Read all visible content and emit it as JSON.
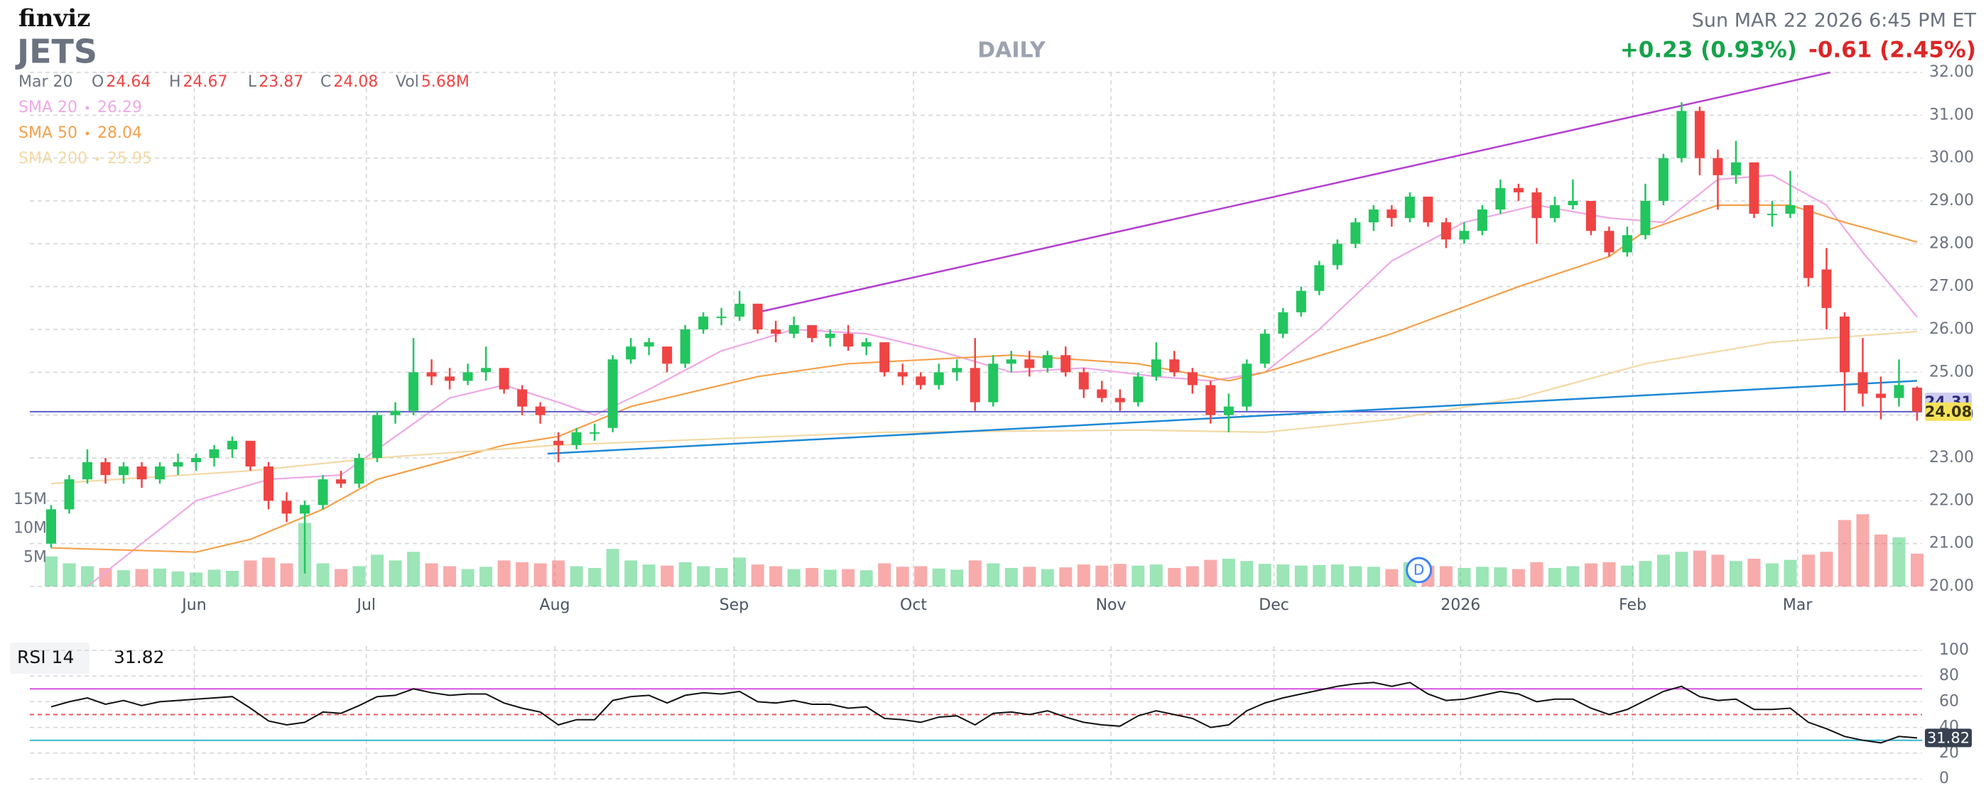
{
  "header": {
    "logo": "finviz",
    "ticker": "JETS",
    "timeframe": "DAILY",
    "datetime": "Sun MAR 22 2026 6:45 PM ET",
    "change_after": "+0.23 (0.93%)",
    "change_day": "-0.61 (2.45%)"
  },
  "chart_data": {
    "type": "candlestick",
    "up_color": "#22c55e",
    "down_color": "#ef4444",
    "ohlc_legend": {
      "date": "Mar 20",
      "items": [
        {
          "label": "O",
          "value": 24.64
        },
        {
          "label": "H",
          "value": 24.67
        },
        {
          "label": "L",
          "value": 23.87
        },
        {
          "label": "C",
          "value": 24.08
        },
        {
          "label": "Vol",
          "value": 5.68,
          "value_label": "5.68M"
        }
      ]
    },
    "ylim": [
      20,
      32
    ],
    "yticks": [
      {
        "value": 20,
        "label": "20.00"
      },
      {
        "value": 21,
        "label": "21.00"
      },
      {
        "value": 22,
        "label": "22.00"
      },
      {
        "value": 23,
        "label": "23.00"
      },
      {
        "value": 24,
        "label": "24.00"
      },
      {
        "value": 25,
        "label": "25.00"
      },
      {
        "value": 26,
        "label": "26.00"
      },
      {
        "value": 27,
        "label": "27.00"
      },
      {
        "value": 28,
        "label": "28.00"
      },
      {
        "value": 29,
        "label": "29.00"
      },
      {
        "value": 30,
        "label": "30.00"
      },
      {
        "value": 31,
        "label": "31.00"
      },
      {
        "value": 32,
        "label": "32.00"
      }
    ],
    "xticks": [
      {
        "value": 7.9,
        "label": "Jun"
      },
      {
        "value": 17.4,
        "label": "Jul"
      },
      {
        "value": 27.8,
        "label": "Aug"
      },
      {
        "value": 37.7,
        "label": "Sep"
      },
      {
        "value": 47.6,
        "label": "Oct"
      },
      {
        "value": 58.5,
        "label": "Nov"
      },
      {
        "value": 67.5,
        "label": "Dec"
      },
      {
        "value": 77.8,
        "label": "2026"
      },
      {
        "value": 87.3,
        "label": "Feb"
      },
      {
        "value": 96.4,
        "label": "Mar"
      }
    ],
    "grid": true,
    "candles": [
      [
        21.0,
        21.9,
        20.9,
        21.8
      ],
      [
        21.8,
        22.6,
        21.7,
        22.5
      ],
      [
        22.5,
        23.2,
        22.4,
        22.9
      ],
      [
        22.9,
        23.0,
        22.4,
        22.6
      ],
      [
        22.6,
        22.9,
        22.4,
        22.8
      ],
      [
        22.8,
        22.9,
        22.3,
        22.5
      ],
      [
        22.5,
        22.9,
        22.4,
        22.8
      ],
      [
        22.8,
        23.1,
        22.6,
        22.9
      ],
      [
        22.9,
        23.1,
        22.7,
        23.0
      ],
      [
        23.0,
        23.3,
        22.8,
        23.2
      ],
      [
        23.2,
        23.5,
        23.0,
        23.4
      ],
      [
        23.4,
        23.4,
        22.7,
        22.8
      ],
      [
        22.8,
        22.9,
        21.8,
        22.0
      ],
      [
        22.0,
        22.2,
        21.5,
        21.7
      ],
      [
        21.7,
        22.0,
        20.3,
        21.9
      ],
      [
        21.9,
        22.6,
        21.8,
        22.5
      ],
      [
        22.5,
        22.7,
        22.3,
        22.4
      ],
      [
        22.4,
        23.1,
        22.3,
        23.0
      ],
      [
        23.0,
        24.1,
        22.9,
        24.0
      ],
      [
        24.0,
        24.3,
        23.8,
        24.1
      ],
      [
        24.1,
        25.8,
        24.0,
        25.0
      ],
      [
        25.0,
        25.3,
        24.7,
        24.9
      ],
      [
        24.9,
        25.1,
        24.6,
        24.8
      ],
      [
        24.8,
        25.2,
        24.7,
        25.0
      ],
      [
        25.0,
        25.6,
        24.8,
        25.1
      ],
      [
        25.1,
        25.1,
        24.5,
        24.6
      ],
      [
        24.6,
        24.7,
        24.0,
        24.2
      ],
      [
        24.2,
        24.3,
        23.8,
        24.0
      ],
      [
        23.4,
        23.6,
        22.9,
        23.3
      ],
      [
        23.3,
        23.7,
        23.2,
        23.6
      ],
      [
        23.6,
        23.8,
        23.4,
        23.6
      ],
      [
        23.7,
        25.4,
        23.6,
        25.3
      ],
      [
        25.3,
        25.8,
        25.2,
        25.6
      ],
      [
        25.6,
        25.8,
        25.4,
        25.7
      ],
      [
        25.6,
        25.6,
        25.0,
        25.2
      ],
      [
        25.2,
        26.1,
        25.1,
        26.0
      ],
      [
        26.0,
        26.4,
        25.9,
        26.3
      ],
      [
        26.3,
        26.5,
        26.1,
        26.3
      ],
      [
        26.3,
        26.9,
        26.2,
        26.6
      ],
      [
        26.6,
        26.6,
        25.9,
        26.0
      ],
      [
        26.0,
        26.2,
        25.7,
        25.9
      ],
      [
        25.9,
        26.3,
        25.8,
        26.1
      ],
      [
        26.1,
        26.1,
        25.7,
        25.8
      ],
      [
        25.8,
        26.0,
        25.6,
        25.9
      ],
      [
        25.9,
        26.1,
        25.5,
        25.6
      ],
      [
        25.6,
        25.8,
        25.4,
        25.7
      ],
      [
        25.7,
        25.7,
        24.9,
        25.0
      ],
      [
        25.0,
        25.2,
        24.7,
        24.9
      ],
      [
        24.9,
        25.0,
        24.6,
        24.7
      ],
      [
        24.7,
        25.2,
        24.6,
        25.0
      ],
      [
        25.0,
        25.3,
        24.8,
        25.1
      ],
      [
        25.1,
        25.8,
        24.1,
        24.3
      ],
      [
        24.3,
        25.4,
        24.2,
        25.2
      ],
      [
        25.2,
        25.5,
        25.0,
        25.3
      ],
      [
        25.3,
        25.5,
        24.9,
        25.1
      ],
      [
        25.1,
        25.5,
        25.0,
        25.4
      ],
      [
        25.4,
        25.6,
        24.9,
        25.0
      ],
      [
        25.0,
        25.1,
        24.4,
        24.6
      ],
      [
        24.6,
        24.8,
        24.3,
        24.4
      ],
      [
        24.4,
        24.6,
        24.1,
        24.3
      ],
      [
        24.3,
        25.0,
        24.2,
        24.9
      ],
      [
        24.9,
        25.7,
        24.8,
        25.3
      ],
      [
        25.3,
        25.5,
        24.9,
        25.0
      ],
      [
        25.0,
        25.1,
        24.5,
        24.7
      ],
      [
        24.7,
        24.8,
        23.8,
        24.0
      ],
      [
        24.0,
        24.5,
        23.6,
        24.2
      ],
      [
        24.2,
        25.3,
        24.1,
        25.2
      ],
      [
        25.2,
        26.0,
        25.1,
        25.9
      ],
      [
        25.9,
        26.5,
        25.8,
        26.4
      ],
      [
        26.4,
        27.0,
        26.3,
        26.9
      ],
      [
        26.9,
        27.6,
        26.8,
        27.5
      ],
      [
        27.5,
        28.1,
        27.4,
        28.0
      ],
      [
        28.0,
        28.6,
        27.9,
        28.5
      ],
      [
        28.5,
        28.9,
        28.3,
        28.8
      ],
      [
        28.8,
        28.9,
        28.4,
        28.6
      ],
      [
        28.6,
        29.2,
        28.5,
        29.1
      ],
      [
        29.1,
        29.1,
        28.4,
        28.5
      ],
      [
        28.5,
        28.6,
        27.9,
        28.1
      ],
      [
        28.1,
        28.5,
        28.0,
        28.3
      ],
      [
        28.3,
        28.9,
        28.2,
        28.8
      ],
      [
        28.8,
        29.5,
        28.7,
        29.3
      ],
      [
        29.3,
        29.4,
        29.0,
        29.2
      ],
      [
        29.2,
        29.3,
        28.0,
        28.6
      ],
      [
        28.6,
        29.1,
        28.5,
        28.9
      ],
      [
        28.9,
        29.5,
        28.8,
        29.0
      ],
      [
        29.0,
        29.0,
        28.2,
        28.3
      ],
      [
        28.3,
        28.4,
        27.7,
        27.8
      ],
      [
        27.8,
        28.4,
        27.7,
        28.2
      ],
      [
        28.2,
        29.4,
        28.1,
        29.0
      ],
      [
        29.0,
        30.1,
        28.9,
        30.0
      ],
      [
        30.0,
        31.3,
        29.9,
        31.1
      ],
      [
        31.1,
        31.2,
        29.6,
        30.0
      ],
      [
        30.0,
        30.2,
        28.8,
        29.6
      ],
      [
        29.6,
        30.4,
        29.4,
        29.9
      ],
      [
        29.9,
        29.9,
        28.6,
        28.7
      ],
      [
        28.7,
        29.0,
        28.4,
        28.7
      ],
      [
        28.7,
        29.7,
        28.6,
        28.9
      ],
      [
        28.9,
        28.9,
        27.0,
        27.2
      ],
      [
        27.4,
        27.9,
        26.0,
        26.5
      ],
      [
        26.3,
        26.4,
        24.1,
        25.0
      ],
      [
        25.0,
        25.8,
        24.2,
        24.5
      ],
      [
        24.5,
        24.9,
        23.9,
        24.4
      ],
      [
        24.4,
        25.3,
        24.2,
        24.7
      ],
      [
        24.64,
        24.67,
        23.87,
        24.08
      ]
    ],
    "sma": [
      {
        "name": "SMA 20",
        "current": 26.29,
        "color": "#eea8e6",
        "x": [
          2,
          8,
          12,
          16,
          19,
          22,
          25,
          28,
          30,
          33,
          37,
          41,
          45,
          49,
          53,
          57,
          61,
          64,
          67,
          70,
          74,
          78,
          82,
          86,
          89,
          92,
          95,
          98,
          100,
          102,
          103
        ],
        "values": [
          20.0,
          22.0,
          22.5,
          22.6,
          23.5,
          24.4,
          24.7,
          24.3,
          24.0,
          24.6,
          25.5,
          26.0,
          25.9,
          25.5,
          25.0,
          25.1,
          24.9,
          24.8,
          25.0,
          26.0,
          27.6,
          28.5,
          28.9,
          28.6,
          28.5,
          29.5,
          29.6,
          28.9,
          27.8,
          26.8,
          26.29
        ]
      },
      {
        "name": "SMA 50",
        "current": 28.04,
        "color": "#f5a04a",
        "x": [
          0,
          8,
          11,
          15,
          18,
          25,
          28,
          32,
          39,
          44,
          53,
          60,
          65,
          67,
          74,
          81,
          86,
          88,
          92,
          96,
          99,
          103
        ],
        "values": [
          20.9,
          20.8,
          21.1,
          21.8,
          22.5,
          23.3,
          23.5,
          24.2,
          24.9,
          25.2,
          25.4,
          25.2,
          24.8,
          25.0,
          25.9,
          27.0,
          27.7,
          28.3,
          28.9,
          28.9,
          28.5,
          28.04
        ]
      },
      {
        "name": "SMA 200",
        "current": 25.95,
        "color": "#f3d9a6",
        "x": [
          0,
          11,
          18,
          28,
          46,
          60,
          67,
          74,
          81,
          88,
          95,
          103
        ],
        "values": [
          22.4,
          22.7,
          23.0,
          23.3,
          23.6,
          23.65,
          23.6,
          23.9,
          24.4,
          25.2,
          25.7,
          25.95
        ]
      }
    ],
    "trendlines": [
      {
        "color": "#b43fd0",
        "x": [
          39,
          98.2
        ],
        "values": [
          26.4,
          32.0
        ]
      },
      {
        "color": "#1e88d6",
        "x": [
          27.4,
          103
        ],
        "values": [
          23.1,
          24.8
        ]
      }
    ],
    "horizontal_lines": [
      {
        "value": 24.08,
        "color": "#5c5cc8"
      }
    ],
    "price_labels": [
      {
        "value": 24.31,
        "bg": "#cfcdf3",
        "color": "#2b2b7a"
      },
      {
        "value": 24.08,
        "bg": "#f4e25c",
        "color": "#3a3200"
      }
    ],
    "markers": [
      {
        "x": 75.5,
        "label": "D",
        "color": "#3b82f6"
      }
    ],
    "volume": {
      "ylim": [
        0,
        15
      ],
      "yticks": [
        {
          "value": 5,
          "label": "5M"
        },
        {
          "value": 10,
          "label": "10M"
        },
        {
          "value": 15,
          "label": "15M"
        }
      ],
      "values": [
        5.2,
        4.0,
        3.5,
        3.2,
        2.8,
        3.0,
        3.1,
        2.6,
        2.4,
        2.9,
        2.7,
        4.5,
        5.0,
        4.0,
        11.0,
        4.0,
        3.0,
        3.5,
        5.5,
        4.5,
        6.0,
        4.0,
        3.5,
        3.0,
        3.4,
        4.5,
        4.2,
        4.0,
        4.5,
        3.5,
        3.2,
        6.5,
        4.5,
        3.8,
        3.6,
        4.2,
        3.5,
        3.2,
        5.0,
        3.8,
        3.5,
        3.0,
        3.2,
        2.9,
        3.0,
        2.8,
        4.0,
        3.4,
        3.5,
        3.1,
        2.9,
        4.5,
        4.0,
        3.2,
        3.4,
        3.0,
        3.3,
        3.8,
        3.6,
        3.9,
        3.6,
        3.8,
        3.2,
        3.5,
        4.6,
        4.8,
        4.4,
        3.9,
        3.8,
        3.6,
        3.7,
        3.8,
        3.5,
        3.4,
        3.0,
        4.2,
        3.6,
        3.5,
        3.2,
        3.4,
        3.3,
        3.0,
        4.2,
        3.2,
        3.5,
        4.0,
        4.2,
        3.6,
        4.4,
        5.5,
        6.0,
        6.2,
        5.5,
        4.4,
        4.8,
        4.0,
        4.6,
        5.5,
        6.0,
        11.5,
        12.5,
        9.0,
        8.5,
        5.68
      ]
    },
    "rsi": {
      "label": "RSI 14",
      "current": 31.82,
      "color": "#111111",
      "ylim": [
        0,
        100
      ],
      "yticks": [
        0,
        20,
        40,
        60,
        80,
        100
      ],
      "levels": [
        {
          "value": 70,
          "color": "#d94fe0",
          "dashed": false
        },
        {
          "value": 50,
          "color": "#e05a5a",
          "dashed": true
        },
        {
          "value": 30,
          "color": "#33b5cf",
          "dashed": false
        }
      ],
      "values": [
        56,
        60,
        63,
        58,
        61,
        57,
        60,
        61,
        62,
        63,
        64,
        55,
        45,
        42,
        44,
        52,
        51,
        57,
        64,
        65,
        70,
        67,
        65,
        66,
        66,
        59,
        55,
        52,
        42,
        46,
        46,
        61,
        64,
        65,
        59,
        65,
        67,
        66,
        68,
        60,
        59,
        61,
        58,
        58,
        55,
        56,
        47,
        46,
        44,
        48,
        49,
        42,
        51,
        52,
        50,
        53,
        48,
        44,
        42,
        41,
        49,
        53,
        50,
        47,
        40,
        42,
        53,
        59,
        63,
        66,
        69,
        72,
        74,
        75,
        72,
        75,
        66,
        61,
        62,
        65,
        68,
        66,
        60,
        62,
        62,
        55,
        50,
        54,
        61,
        68,
        72,
        64,
        61,
        62,
        54,
        54,
        55,
        44,
        39,
        33,
        30,
        28,
        33,
        31.82
      ]
    }
  }
}
